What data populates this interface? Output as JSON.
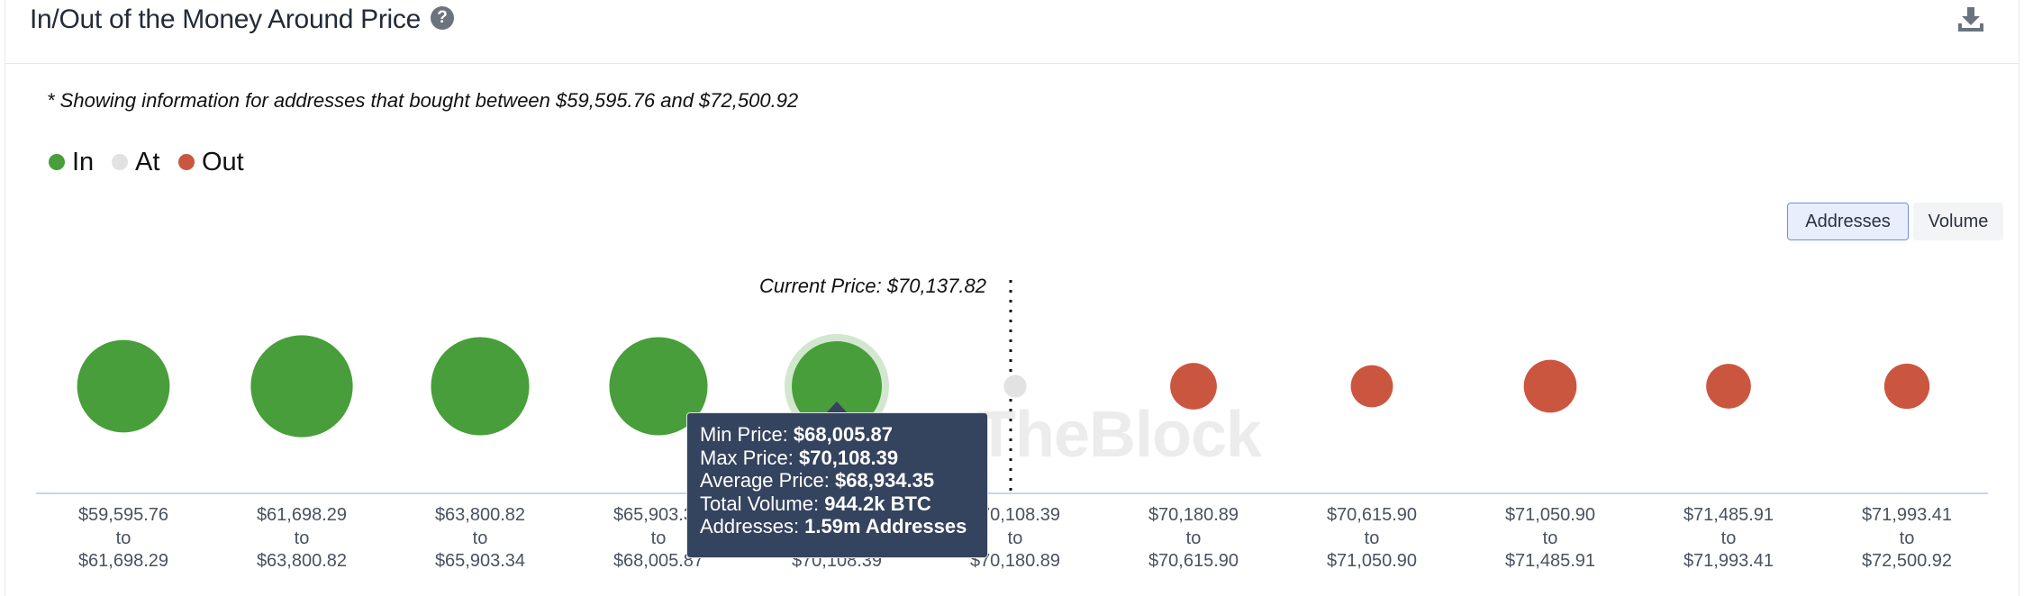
{
  "title": "In/Out of the Money Around Price",
  "note": "* Showing information for addresses that bought between $59,595.76 and $72,500.92",
  "icons": {
    "help": "question-circle-icon",
    "download": "download-icon"
  },
  "legend": [
    {
      "label": "In",
      "color": "#489e3a"
    },
    {
      "label": "At",
      "color": "#e2e2e2"
    },
    {
      "label": "Out",
      "color": "#cb5640"
    }
  ],
  "toggle": {
    "addresses": "Addresses",
    "volume": "Volume",
    "selected": "Addresses"
  },
  "current_price_label": "Current Price: $70,137.82",
  "watermark": "TheBlock",
  "tooltip": {
    "rows": [
      {
        "label": "Min Price: ",
        "value": "$68,005.87"
      },
      {
        "label": "Max Price: ",
        "value": "$70,108.39"
      },
      {
        "label": "Average Price: ",
        "value": "$68,934.35"
      },
      {
        "label": "Total Volume: ",
        "value": "944.2k BTC"
      },
      {
        "label": "Addresses: ",
        "value": "1.59m Addresses"
      }
    ]
  },
  "chart_data": {
    "type": "scatter",
    "title": "In/Out of the Money Around Price",
    "current_price": 70137.82,
    "size_metric": "Addresses",
    "categories": [
      {
        "from": "$59,595.76",
        "to": "$61,698.29",
        "status": "In",
        "relative_size": 1.47
      },
      {
        "from": "$61,698.29",
        "to": "$63,800.82",
        "status": "In",
        "relative_size": 1.62
      },
      {
        "from": "$63,800.82",
        "to": "$65,903.34",
        "status": "In",
        "relative_size": 1.56
      },
      {
        "from": "$65,903.34",
        "to": "$68,005.87",
        "status": "In",
        "relative_size": 1.56
      },
      {
        "from": "$68,005.87",
        "to": "$70,108.39",
        "status": "In",
        "relative_size": 1.43,
        "highlighted": true
      },
      {
        "from": "$70,108.39",
        "to": "$70,180.89",
        "status": "At",
        "relative_size": 0.36
      },
      {
        "from": "$70,180.89",
        "to": "$70,615.90",
        "status": "Out",
        "relative_size": 0.74
      },
      {
        "from": "$70,615.90",
        "to": "$71,050.90",
        "status": "Out",
        "relative_size": 0.67
      },
      {
        "from": "$71,050.90",
        "to": "$71,485.91",
        "status": "Out",
        "relative_size": 0.84
      },
      {
        "from": "$71,485.91",
        "to": "$71,993.41",
        "status": "Out",
        "relative_size": 0.71
      },
      {
        "from": "$71,993.41",
        "to": "$72,500.92",
        "status": "Out",
        "relative_size": 0.72
      }
    ],
    "legend": [
      "In",
      "At",
      "Out"
    ],
    "legend_position": "top-left"
  }
}
